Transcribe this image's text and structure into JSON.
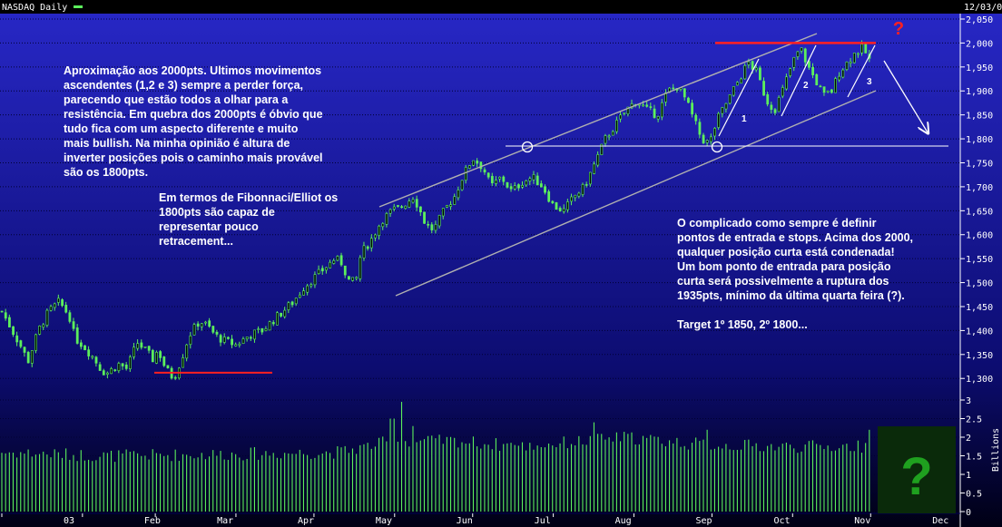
{
  "header": {
    "title": "NASDAQ Daily",
    "date": "12/03/0"
  },
  "chart_data": {
    "type": "candlestick",
    "price_axis": {
      "ticks": [
        "2,050",
        "2,000",
        "1,950",
        "1,900",
        "1,850",
        "1,800",
        "1,750",
        "1,700",
        "1,650",
        "1,600",
        "1,550",
        "1,500",
        "1,450",
        "1,400",
        "1,350",
        "1,300"
      ],
      "range": [
        1255,
        2050
      ]
    },
    "volume_axis": {
      "label": "Billions",
      "ticks": [
        "3",
        "2.5",
        "2",
        "1.5",
        "1",
        "0.5",
        "0"
      ],
      "range": [
        0,
        3
      ]
    },
    "x_labels": [
      "03",
      "Feb",
      "Mar",
      "Apr",
      "May",
      "Jun",
      "Jul",
      "Aug",
      "Sep",
      "Oct",
      "Nov",
      "Dec"
    ],
    "x_label_days": [
      0,
      31,
      59,
      90,
      120,
      151,
      181,
      212,
      243,
      273,
      304,
      334
    ],
    "price_path": [
      [
        0,
        1440
      ],
      [
        5,
        1390
      ],
      [
        8,
        1360
      ],
      [
        10,
        1335
      ],
      [
        14,
        1400
      ],
      [
        18,
        1440
      ],
      [
        22,
        1460
      ],
      [
        26,
        1430
      ],
      [
        28,
        1385
      ],
      [
        31,
        1370
      ],
      [
        35,
        1345
      ],
      [
        38,
        1320
      ],
      [
        40,
        1310
      ],
      [
        45,
        1330
      ],
      [
        48,
        1320
      ],
      [
        52,
        1375
      ],
      [
        55,
        1360
      ],
      [
        58,
        1340
      ],
      [
        60,
        1360
      ],
      [
        63,
        1320
      ],
      [
        66,
        1300
      ],
      [
        69,
        1340
      ],
      [
        72,
        1390
      ],
      [
        76,
        1420
      ],
      [
        79,
        1410
      ],
      [
        82,
        1390
      ],
      [
        85,
        1380
      ],
      [
        90,
        1370
      ],
      [
        95,
        1390
      ],
      [
        100,
        1400
      ],
      [
        104,
        1420
      ],
      [
        108,
        1440
      ],
      [
        112,
        1460
      ],
      [
        116,
        1490
      ],
      [
        120,
        1510
      ],
      [
        124,
        1530
      ],
      [
        128,
        1550
      ],
      [
        131,
        1540
      ],
      [
        133,
        1505
      ],
      [
        136,
        1500
      ],
      [
        138,
        1560
      ],
      [
        142,
        1590
      ],
      [
        146,
        1630
      ],
      [
        150,
        1650
      ],
      [
        154,
        1660
      ],
      [
        158,
        1680
      ],
      [
        160,
        1660
      ],
      [
        163,
        1620
      ],
      [
        166,
        1610
      ],
      [
        170,
        1650
      ],
      [
        174,
        1680
      ],
      [
        177,
        1720
      ],
      [
        181,
        1760
      ],
      [
        185,
        1740
      ],
      [
        188,
        1700
      ],
      [
        192,
        1720
      ],
      [
        196,
        1690
      ],
      [
        200,
        1710
      ],
      [
        204,
        1720
      ],
      [
        208,
        1700
      ],
      [
        212,
        1660
      ],
      [
        216,
        1650
      ],
      [
        220,
        1680
      ],
      [
        224,
        1700
      ],
      [
        228,
        1750
      ],
      [
        232,
        1800
      ],
      [
        236,
        1830
      ],
      [
        240,
        1860
      ],
      [
        244,
        1880
      ],
      [
        248,
        1860
      ],
      [
        252,
        1850
      ],
      [
        256,
        1900
      ],
      [
        260,
        1910
      ],
      [
        263,
        1880
      ],
      [
        266,
        1840
      ],
      [
        269,
        1800
      ],
      [
        272,
        1790
      ],
      [
        275,
        1840
      ],
      [
        279,
        1880
      ],
      [
        283,
        1920
      ],
      [
        287,
        1960
      ],
      [
        290,
        1940
      ],
      [
        294,
        1880
      ],
      [
        297,
        1860
      ],
      [
        300,
        1900
      ],
      [
        304,
        1960
      ],
      [
        307,
        1990
      ],
      [
        310,
        1950
      ],
      [
        313,
        1920
      ],
      [
        316,
        1890
      ],
      [
        319,
        1900
      ],
      [
        322,
        1940
      ],
      [
        325,
        1960
      ],
      [
        328,
        1980
      ],
      [
        331,
        1990
      ],
      [
        334,
        1960
      ]
    ],
    "volume_profile": [
      [
        0,
        1.6
      ],
      [
        40,
        1.5
      ],
      [
        90,
        1.55
      ],
      [
        130,
        1.6
      ],
      [
        150,
        1.9
      ],
      [
        175,
        1.9
      ],
      [
        200,
        1.75
      ],
      [
        240,
        2.0
      ],
      [
        270,
        1.8
      ],
      [
        300,
        1.75
      ],
      [
        334,
        1.75
      ]
    ],
    "volume_spikes": [
      [
        150,
        2.5
      ],
      [
        154,
        2.95
      ],
      [
        158,
        2.3
      ],
      [
        196,
        1.85
      ],
      [
        227,
        2.4
      ],
      [
        271,
        2.2
      ],
      [
        334,
        2.2
      ]
    ],
    "resistance_level": 2000,
    "support_level_low": 1312,
    "support_level_1800": 1785,
    "wave_labels": [
      "1",
      "2",
      "3"
    ],
    "annotation_main": "Aproximação aos 2000pts. Ultimos movimentos\nascendentes (1,2 e 3) sempre a perder força,\nparecendo que estão todos a olhar para a\nresistência. Em quebra dos 2000pts é óbvio que\ntudo fica com um aspecto diferente e muito\nmais bullish. Na minha opinião é altura de\ninverter posições pois o caminho mais provável\nsão os 1800pts.",
    "annotation_fib": "Em termos de Fibonnaci/Elliot os\n1800pts são capaz de\nrepresentar pouco\nretracement...",
    "annotation_right": "O complicado como sempre é definir\npontos de entrada e stops. Acima dos 2000,\nqualquer posição curta está condenada!\nUm bom ponto de entrada para posição\ncurta será possivelmente a ruptura dos\n1935pts, mínimo da última quarta feira (?).\n\nTarget 1º 1850, 2º 1800...",
    "question_mark_top": "?",
    "question_mark_box": "?",
    "colors": {
      "background_top": "#2828c8",
      "background_bottom": "#000014",
      "candle": "#5cf05c",
      "volume": "#5cf05c",
      "resistance": "#ff2020",
      "question": "#ff2020",
      "channel": "#b0b0b0",
      "box": "#0a2a0a",
      "box_question": "#1fa01f"
    }
  }
}
